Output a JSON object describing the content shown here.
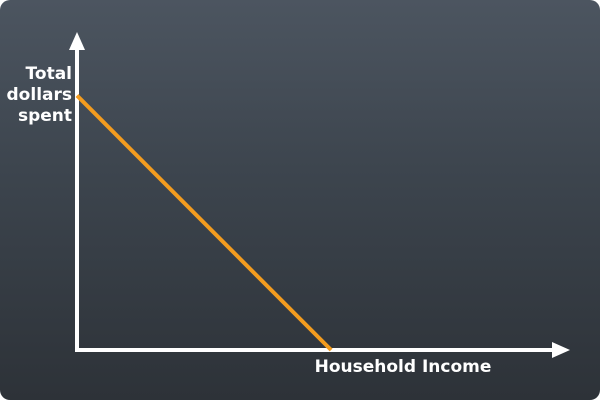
{
  "chart_data": {
    "type": "line",
    "title": "",
    "xlabel": "Household Income",
    "ylabel_lines": [
      "Total",
      "dollars",
      "spent"
    ],
    "series": [
      {
        "color": "#f39c1f",
        "x": [
          0,
          1
        ],
        "y": [
          1,
          0
        ]
      }
    ],
    "xlim": [
      0,
      1.94
    ],
    "ylim": [
      0,
      1.25
    ],
    "grid": false,
    "legend": "none",
    "axis_color": "#ffffff"
  }
}
